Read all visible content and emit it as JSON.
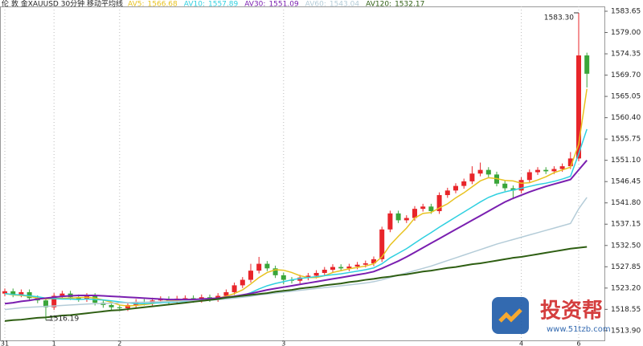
{
  "chart_data": {
    "type": "candlestick",
    "title": "伦 敦 金XAUUSD 30分钟 移动平均线",
    "categories": [
      "31",
      null,
      null,
      null,
      null,
      null,
      "1",
      null,
      null,
      null,
      null,
      null,
      null,
      null,
      "2",
      null,
      null,
      null,
      null,
      null,
      null,
      null,
      null,
      null,
      null,
      null,
      null,
      null,
      null,
      null,
      null,
      null,
      null,
      null,
      "3",
      null,
      null,
      null,
      null,
      null,
      null,
      null,
      null,
      null,
      null,
      null,
      null,
      null,
      null,
      null,
      null,
      null,
      null,
      null,
      null,
      null,
      null,
      null,
      null,
      null,
      null,
      null,
      null,
      "4",
      null,
      null,
      null,
      null,
      null,
      null,
      "6",
      null
    ],
    "open": [
      1522.0,
      1522.5,
      1521.8,
      1522.3,
      1521.0,
      1520.5,
      1519.0,
      1521.5,
      1522.0,
      1521.2,
      1520.8,
      1521.5,
      1520.0,
      1519.5,
      1519.0,
      1518.8,
      1519.5,
      1520.2,
      1520.0,
      1520.5,
      1520.8,
      1520.3,
      1520.9,
      1521.0,
      1520.6,
      1521.2,
      1520.8,
      1521.5,
      1522.3,
      1523.8,
      1525.0,
      1527.0,
      1528.5,
      1527.5,
      1526.0,
      1525.0,
      1524.8,
      1525.5,
      1525.9,
      1526.5,
      1527.2,
      1527.8,
      1527.5,
      1527.9,
      1528.3,
      1528.6,
      1529.5,
      1536.0,
      1539.5,
      1538.0,
      1538.5,
      1540.5,
      1541.0,
      1540.0,
      1543.5,
      1544.5,
      1545.5,
      1546.5,
      1548.2,
      1549.0,
      1548.0,
      1546.0,
      1545.0,
      1544.5,
      1546.8,
      1548.5,
      1549.0,
      1548.7,
      1549.2,
      1549.8,
      1551.5,
      1574.0
    ],
    "high": [
      1523.1,
      1523.1,
      1522.9,
      1522.9,
      1521.6,
      1521.1,
      1522.1,
      1522.6,
      1522.6,
      1521.8,
      1522.1,
      1522.1,
      1520.6,
      1520.1,
      1519.6,
      1520.1,
      1520.8,
      1520.8,
      1521.1,
      1521.4,
      1521.4,
      1521.5,
      1521.6,
      1521.6,
      1521.8,
      1521.8,
      1522.1,
      1522.9,
      1524.4,
      1525.6,
      1528.5,
      1530.0,
      1529.1,
      1528.1,
      1526.6,
      1525.6,
      1526.1,
      1526.5,
      1527.1,
      1527.8,
      1528.4,
      1528.4,
      1528.5,
      1528.9,
      1529.2,
      1530.1,
      1536.6,
      1540.1,
      1540.1,
      1539.1,
      1541.1,
      1541.6,
      1541.6,
      1544.1,
      1545.1,
      1546.1,
      1547.1,
      1549.8,
      1550.6,
      1549.6,
      1548.6,
      1546.6,
      1545.6,
      1547.4,
      1549.1,
      1549.6,
      1549.6,
      1549.8,
      1550.4,
      1552.9,
      1583.3,
      1574.6
    ],
    "low": [
      1521.4,
      1521.2,
      1521.2,
      1520.4,
      1519.9,
      1516.19,
      1518.4,
      1520.9,
      1520.6,
      1520.2,
      1520.2,
      1519.4,
      1518.9,
      1518.4,
      1518.2,
      1518.2,
      1518.9,
      1519.4,
      1519.4,
      1519.9,
      1519.7,
      1519.7,
      1520.3,
      1520.0,
      1520.0,
      1520.2,
      1520.2,
      1520.9,
      1521.7,
      1523.2,
      1524.4,
      1526.4,
      1526.9,
      1525.4,
      1524.0,
      1524.2,
      1524.2,
      1524.9,
      1525.3,
      1525.9,
      1526.6,
      1526.9,
      1526.9,
      1527.3,
      1527.7,
      1528.0,
      1528.9,
      1535.4,
      1537.4,
      1537.4,
      1537.9,
      1539.9,
      1539.4,
      1539.4,
      1542.9,
      1543.9,
      1544.9,
      1545.9,
      1547.6,
      1547.4,
      1545.4,
      1544.4,
      1542.6,
      1543.9,
      1546.2,
      1547.9,
      1548.1,
      1548.1,
      1548.6,
      1549.2,
      1550.9,
      1567.0
    ],
    "close": [
      1522.5,
      1521.8,
      1522.3,
      1521.0,
      1520.5,
      1519.0,
      1521.5,
      1522.0,
      1521.2,
      1520.8,
      1521.5,
      1520.0,
      1519.5,
      1519.0,
      1518.8,
      1519.5,
      1520.2,
      1520.0,
      1520.5,
      1520.8,
      1520.3,
      1520.9,
      1521.0,
      1520.6,
      1521.2,
      1520.8,
      1521.5,
      1522.3,
      1523.8,
      1525.0,
      1527.0,
      1528.5,
      1527.5,
      1526.0,
      1525.0,
      1524.8,
      1525.5,
      1525.9,
      1526.5,
      1527.2,
      1527.8,
      1527.5,
      1527.9,
      1528.3,
      1528.6,
      1529.5,
      1536.0,
      1539.5,
      1538.0,
      1538.5,
      1540.5,
      1541.0,
      1540.0,
      1543.5,
      1544.5,
      1545.5,
      1546.5,
      1548.2,
      1549.0,
      1548.0,
      1546.0,
      1545.0,
      1544.5,
      1546.8,
      1548.5,
      1549.0,
      1548.7,
      1549.2,
      1549.8,
      1551.5,
      1574.0,
      1570.0
    ],
    "up_color": "#e8252a",
    "down_color": "#3aa63a",
    "high_label": "1583.30",
    "low_label": "1516.19",
    "series": [
      {
        "name": "AV5:",
        "last": 1566.68,
        "color": "#e8c21f",
        "values": [
          1522.0,
          1521.7,
          1521.6,
          1521.4,
          1521.0,
          1520.8,
          1520.9,
          1521.0,
          1521.0,
          1521.1,
          1521.2,
          1521.0,
          1520.6,
          1520.1,
          1519.5,
          1519.3,
          1519.4,
          1519.6,
          1519.8,
          1520.2,
          1520.4,
          1520.5,
          1520.7,
          1520.7,
          1520.8,
          1520.9,
          1521.0,
          1521.4,
          1522.0,
          1522.8,
          1524.1,
          1525.5,
          1526.6,
          1527.2,
          1527.1,
          1526.6,
          1525.9,
          1525.5,
          1525.5,
          1525.9,
          1526.6,
          1527.0,
          1527.4,
          1527.7,
          1528.0,
          1528.5,
          1530.0,
          1532.6,
          1534.5,
          1536.3,
          1538.5,
          1539.5,
          1539.7,
          1540.7,
          1541.6,
          1542.9,
          1544.0,
          1545.3,
          1546.6,
          1547.3,
          1547.1,
          1546.7,
          1546.6,
          1546.1,
          1546.2,
          1546.8,
          1547.5,
          1548.4,
          1549.0,
          1549.6,
          1554.6,
          1566.7
        ]
      },
      {
        "name": "AV10:",
        "last": 1557.89,
        "color": "#2fd0e0",
        "values": [
          1522.0,
          1521.8,
          1521.7,
          1521.5,
          1521.3,
          1521.0,
          1520.9,
          1520.8,
          1520.8,
          1520.7,
          1520.8,
          1520.7,
          1520.6,
          1520.4,
          1520.2,
          1520.0,
          1519.8,
          1519.8,
          1519.9,
          1520.0,
          1520.1,
          1520.2,
          1520.3,
          1520.4,
          1520.5,
          1520.6,
          1520.7,
          1520.9,
          1521.2,
          1521.6,
          1522.2,
          1523.0,
          1523.7,
          1524.2,
          1524.6,
          1525.0,
          1525.3,
          1525.5,
          1525.7,
          1525.9,
          1526.1,
          1526.3,
          1526.6,
          1526.9,
          1527.2,
          1527.6,
          1528.5,
          1529.8,
          1530.8,
          1531.8,
          1533.0,
          1534.2,
          1535.3,
          1536.5,
          1537.6,
          1538.7,
          1539.8,
          1540.9,
          1542.0,
          1543.0,
          1543.7,
          1544.2,
          1544.6,
          1545.0,
          1545.4,
          1545.8,
          1546.1,
          1546.5,
          1547.0,
          1547.6,
          1552.5,
          1557.9
        ]
      },
      {
        "name": "AV30:",
        "last": 1551.09,
        "color": "#7a1fb0",
        "values": [
          1519.8,
          1520.0,
          1520.3,
          1520.5,
          1520.8,
          1521.0,
          1521.2,
          1521.4,
          1521.5,
          1521.6,
          1521.6,
          1521.6,
          1521.5,
          1521.4,
          1521.3,
          1521.2,
          1521.1,
          1521.0,
          1520.9,
          1520.8,
          1520.7,
          1520.7,
          1520.7,
          1520.7,
          1520.8,
          1520.9,
          1521.0,
          1521.2,
          1521.4,
          1521.7,
          1522.0,
          1522.4,
          1522.8,
          1523.1,
          1523.4,
          1523.7,
          1524.0,
          1524.3,
          1524.6,
          1524.9,
          1525.2,
          1525.5,
          1525.8,
          1526.1,
          1526.4,
          1526.8,
          1527.5,
          1528.3,
          1529.1,
          1530.0,
          1531.0,
          1532.0,
          1533.0,
          1534.0,
          1535.0,
          1536.0,
          1537.0,
          1538.0,
          1539.0,
          1540.0,
          1541.0,
          1542.0,
          1542.8,
          1543.5,
          1544.2,
          1544.8,
          1545.4,
          1545.9,
          1546.4,
          1546.9,
          1549.0,
          1551.1
        ]
      },
      {
        "name": "AV60:",
        "last": 1543.04,
        "color": "#b4ccd8",
        "values": [
          1518.5,
          1518.7,
          1518.9,
          1519.0,
          1519.1,
          1519.2,
          1519.3,
          1519.4,
          1519.5,
          1519.6,
          1519.7,
          1519.8,
          1519.8,
          1519.9,
          1520.0,
          1520.0,
          1520.1,
          1520.1,
          1520.2,
          1520.2,
          1520.3,
          1520.3,
          1520.4,
          1520.4,
          1520.5,
          1520.6,
          1520.7,
          1520.8,
          1521.0,
          1521.2,
          1521.4,
          1521.7,
          1521.9,
          1522.1,
          1522.3,
          1522.5,
          1522.7,
          1522.9,
          1523.1,
          1523.3,
          1523.5,
          1523.7,
          1523.9,
          1524.1,
          1524.3,
          1524.6,
          1525.0,
          1525.5,
          1526.0,
          1526.5,
          1527.0,
          1527.5,
          1528.0,
          1528.6,
          1529.2,
          1529.8,
          1530.4,
          1531.0,
          1531.6,
          1532.2,
          1532.8,
          1533.3,
          1533.8,
          1534.3,
          1534.8,
          1535.3,
          1535.8,
          1536.3,
          1536.8,
          1537.3,
          1540.5,
          1543.0
        ]
      },
      {
        "name": "AV120:",
        "last": 1532.17,
        "color": "#2e5e12",
        "values": [
          1516.0,
          1516.2,
          1516.3,
          1516.5,
          1516.7,
          1516.8,
          1517.0,
          1517.2,
          1517.3,
          1517.5,
          1517.7,
          1517.9,
          1518.1,
          1518.3,
          1518.4,
          1518.6,
          1518.8,
          1519.0,
          1519.2,
          1519.4,
          1519.6,
          1519.8,
          1520.0,
          1520.2,
          1520.4,
          1520.6,
          1520.8,
          1521.1,
          1521.3,
          1521.5,
          1521.7,
          1521.9,
          1522.1,
          1522.4,
          1522.6,
          1522.8,
          1523.1,
          1523.3,
          1523.5,
          1523.8,
          1524.0,
          1524.2,
          1524.5,
          1524.7,
          1525.0,
          1525.2,
          1525.5,
          1525.7,
          1526.0,
          1526.2,
          1526.5,
          1526.8,
          1527.0,
          1527.3,
          1527.6,
          1527.8,
          1528.1,
          1528.4,
          1528.6,
          1528.9,
          1529.2,
          1529.5,
          1529.8,
          1530.0,
          1530.3,
          1530.6,
          1530.9,
          1531.2,
          1531.5,
          1531.8,
          1532.0,
          1532.2
        ]
      }
    ],
    "ylim": [
      1511.6,
      1584.7
    ],
    "yticks": [
      {
        "value": 1513.9,
        "label": "1513.90"
      },
      1518.55,
      {
        "value": 1523.2,
        "label": "1523.20"
      },
      1527.85,
      {
        "value": 1532.5,
        "label": "1532.50"
      },
      1537.15,
      {
        "value": 1541.8,
        "label": "1541.80"
      },
      1546.45,
      {
        "value": 1551.1,
        "label": "1551.10"
      },
      1555.75,
      {
        "value": 1560.4,
        "label": "1560.40"
      },
      1565.05,
      {
        "value": 1569.7,
        "label": "1569.70"
      },
      1574.35,
      {
        "value": 1579.0,
        "label": "1579.00"
      },
      1583.65
    ],
    "grid": true
  },
  "watermark": {
    "name": "投资帮",
    "url": "www.51tzb.com"
  }
}
